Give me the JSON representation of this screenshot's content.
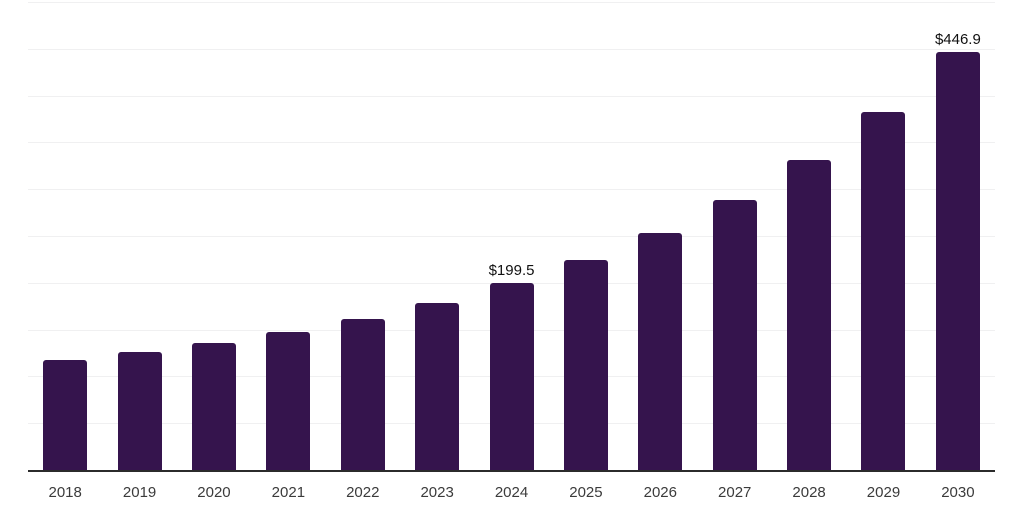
{
  "chart_data": {
    "type": "bar",
    "title": "",
    "xlabel": "",
    "ylabel": "",
    "categories": [
      "2018",
      "2019",
      "2020",
      "2021",
      "2022",
      "2023",
      "2024",
      "2025",
      "2026",
      "2027",
      "2028",
      "2029",
      "2030"
    ],
    "values": [
      117.8,
      126.3,
      136.2,
      147.9,
      161.4,
      178.4,
      199.5,
      224.1,
      253.5,
      289.0,
      330.8,
      382.9,
      446.9
    ],
    "value_labels": [
      "",
      "",
      "",
      "",
      "",
      "",
      "$199.5",
      "",
      "",
      "",
      "",
      "",
      "$446.9"
    ],
    "ylim": [
      0,
      500
    ],
    "grid_step": 50,
    "grid": "horizontal-only",
    "legend_position": "none",
    "y_tick_labels_visible": false,
    "colors": {
      "bar": "#35144d",
      "axis": "#2b2b2b",
      "gridline": "#f0f0f1",
      "value_label": "#111111",
      "tick_label": "#3b3b3b",
      "background": "#ffffff"
    }
  }
}
